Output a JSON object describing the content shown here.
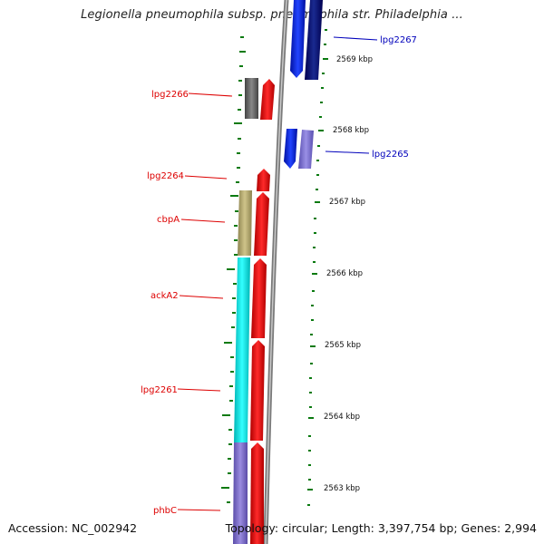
{
  "title": "Legionella pneumophila subsp. pneumophila str. Philadelphia ...",
  "footer": {
    "accession": "Accession: NC_002942",
    "topology": "Topology: circular; Length: 3,397,754 bp; Genes: 2,994"
  },
  "colors": {
    "forward_strand": "#ee1111",
    "reverse_strand_dark": "#1020d0",
    "label_left": "#dd0000",
    "label_right": "#0000bb",
    "tick": "#0a7a10",
    "backbone": "#888888"
  },
  "kbp_ticks": [
    "2569 kbp",
    "2568 kbp",
    "2567 kbp",
    "2566 kbp",
    "2565 kbp",
    "2564 kbp",
    "2563 kbp"
  ],
  "genes_left": [
    {
      "label": "lpg2266",
      "color": "#6b6b6b"
    },
    {
      "label": "lpg2264",
      "color": "#ee1111"
    },
    {
      "label": "cbpA",
      "color": "#b8ad70"
    },
    {
      "label": "ackA2",
      "color": "#00e5e5"
    },
    {
      "label": "lpg2261",
      "color": "#00e5e5"
    },
    {
      "label": "phbC",
      "color": "#7a6cc8"
    }
  ],
  "genes_right": [
    {
      "label": "lpg2267",
      "color": "#1020d0"
    },
    {
      "label": "lpg2265",
      "color": "#1a3ae0"
    }
  ]
}
